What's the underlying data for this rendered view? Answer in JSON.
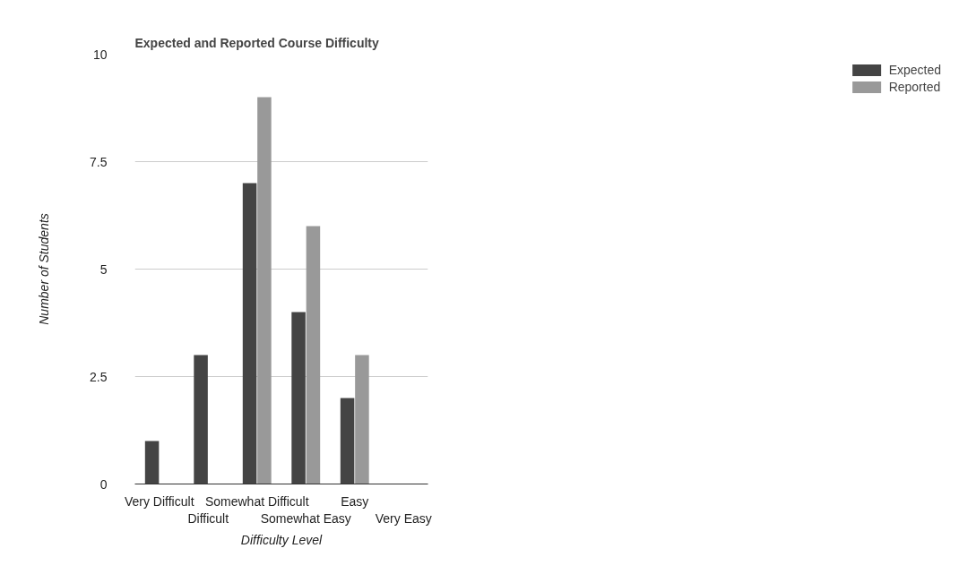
{
  "chart_data": {
    "type": "bar",
    "title": "Expected and Reported Course Difficulty",
    "xlabel": "Difficulty Level",
    "ylabel": "Number of Students",
    "categories": [
      "Very Difficult",
      "Difficult",
      "Somewhat Difficult",
      "Somewhat Easy",
      "Easy",
      "Very Easy"
    ],
    "series": [
      {
        "name": "Expected",
        "color": "#444444",
        "values": [
          1,
          3,
          7,
          4,
          2,
          0
        ]
      },
      {
        "name": "Reported",
        "color": "#999999",
        "values": [
          0,
          0,
          9,
          6,
          3,
          0
        ]
      }
    ],
    "ylim": [
      0,
      10
    ],
    "yticks": [
      0,
      2.5,
      5,
      7.5,
      10
    ],
    "grid": "y",
    "legend": "top right"
  }
}
